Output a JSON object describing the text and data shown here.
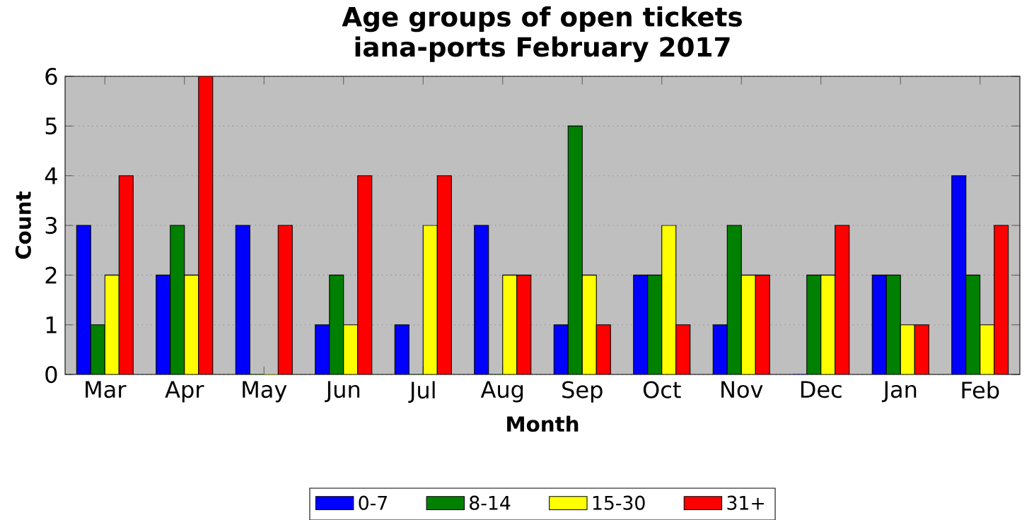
{
  "chart_data": {
    "type": "bar",
    "title": "Age groups of open tickets",
    "subtitle": "iana-ports February 2017",
    "xlabel": "Month",
    "ylabel": "Count",
    "categories": [
      "Mar",
      "Apr",
      "May",
      "Jun",
      "Jul",
      "Aug",
      "Sep",
      "Oct",
      "Nov",
      "Dec",
      "Jan",
      "Feb"
    ],
    "series": [
      {
        "name": "0-7",
        "color": "#0000ff",
        "values": [
          3,
          2,
          3,
          1,
          1,
          3,
          1,
          2,
          1,
          0,
          2,
          4
        ]
      },
      {
        "name": "8-14",
        "color": "#008000",
        "values": [
          1,
          3,
          0,
          2,
          0,
          0,
          5,
          2,
          3,
          2,
          2,
          2
        ]
      },
      {
        "name": "15-30",
        "color": "#ffff00",
        "values": [
          2,
          2,
          0,
          1,
          3,
          2,
          2,
          3,
          2,
          2,
          1,
          1
        ]
      },
      {
        "name": "31+",
        "color": "#ff0000",
        "values": [
          4,
          6,
          3,
          4,
          4,
          2,
          1,
          1,
          2,
          3,
          1,
          3
        ]
      }
    ],
    "ylim": [
      0,
      6
    ],
    "yticks": [
      0,
      1,
      2,
      3,
      4,
      5,
      6
    ],
    "grid": "y",
    "legend": "bottom"
  }
}
